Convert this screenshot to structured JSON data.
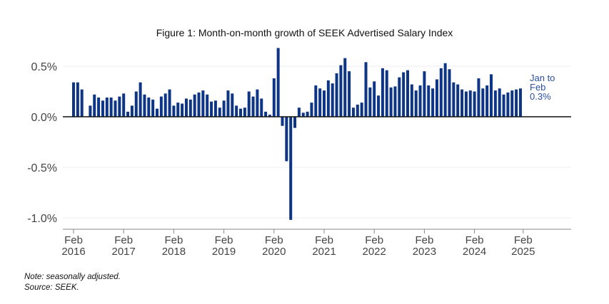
{
  "chart_data": {
    "type": "bar",
    "title": "Figure 1: Month-on-month growth of SEEK Advertised Salary Index",
    "xlabel": "",
    "ylabel": "",
    "ylim": [
      -1.1,
      0.7
    ],
    "yticks": [
      0.5,
      0.0,
      -0.5,
      -1.0
    ],
    "ytick_labels": [
      "0.5%",
      "0.0%",
      "-0.5%",
      "-1.0%"
    ],
    "xtick_labels": [
      {
        "month": "Feb",
        "year": "2016"
      },
      {
        "month": "Feb",
        "year": "2017"
      },
      {
        "month": "Feb",
        "year": "2018"
      },
      {
        "month": "Feb",
        "year": "2019"
      },
      {
        "month": "Feb",
        "year": "2020"
      },
      {
        "month": "Feb",
        "year": "2021"
      },
      {
        "month": "Feb",
        "year": "2022"
      },
      {
        "month": "Feb",
        "year": "2023"
      },
      {
        "month": "Feb",
        "year": "2024"
      },
      {
        "month": "Feb",
        "year": "2025"
      }
    ],
    "start": "Feb 2016",
    "frequency": "monthly",
    "values": [
      0.34,
      0.34,
      0.27,
      0.0,
      0.11,
      0.22,
      0.19,
      0.16,
      0.19,
      0.19,
      0.16,
      0.2,
      0.23,
      0.05,
      0.11,
      0.25,
      0.34,
      0.22,
      0.19,
      0.17,
      0.08,
      0.2,
      0.23,
      0.27,
      0.11,
      0.14,
      0.13,
      0.18,
      0.17,
      0.22,
      0.24,
      0.26,
      0.22,
      0.15,
      0.16,
      0.09,
      0.16,
      0.26,
      0.23,
      0.11,
      0.08,
      0.09,
      0.25,
      0.2,
      0.27,
      0.18,
      0.05,
      0.02,
      0.38,
      0.68,
      -0.09,
      -0.44,
      -1.02,
      -0.11,
      0.09,
      0.04,
      0.05,
      0.14,
      0.31,
      0.28,
      0.26,
      0.36,
      0.33,
      0.43,
      0.51,
      0.58,
      0.45,
      0.09,
      0.12,
      0.14,
      0.54,
      0.29,
      0.35,
      0.21,
      0.48,
      0.46,
      0.29,
      0.3,
      0.39,
      0.44,
      0.46,
      0.32,
      0.26,
      0.31,
      0.45,
      0.31,
      0.28,
      0.37,
      0.48,
      0.53,
      0.47,
      0.34,
      0.32,
      0.27,
      0.25,
      0.26,
      0.25,
      0.38,
      0.28,
      0.31,
      0.42,
      0.26,
      0.28,
      0.22,
      0.24,
      0.26,
      0.27,
      0.28
    ],
    "annotation": {
      "line1": "Jan to",
      "line2": "Feb",
      "line3": "0.3%"
    },
    "grid": true,
    "bar_color": "#0e3585",
    "annotation_color": "#2b4ea2"
  },
  "notes": [
    "Note: seasonally adjusted.",
    "Source: SEEK."
  ]
}
